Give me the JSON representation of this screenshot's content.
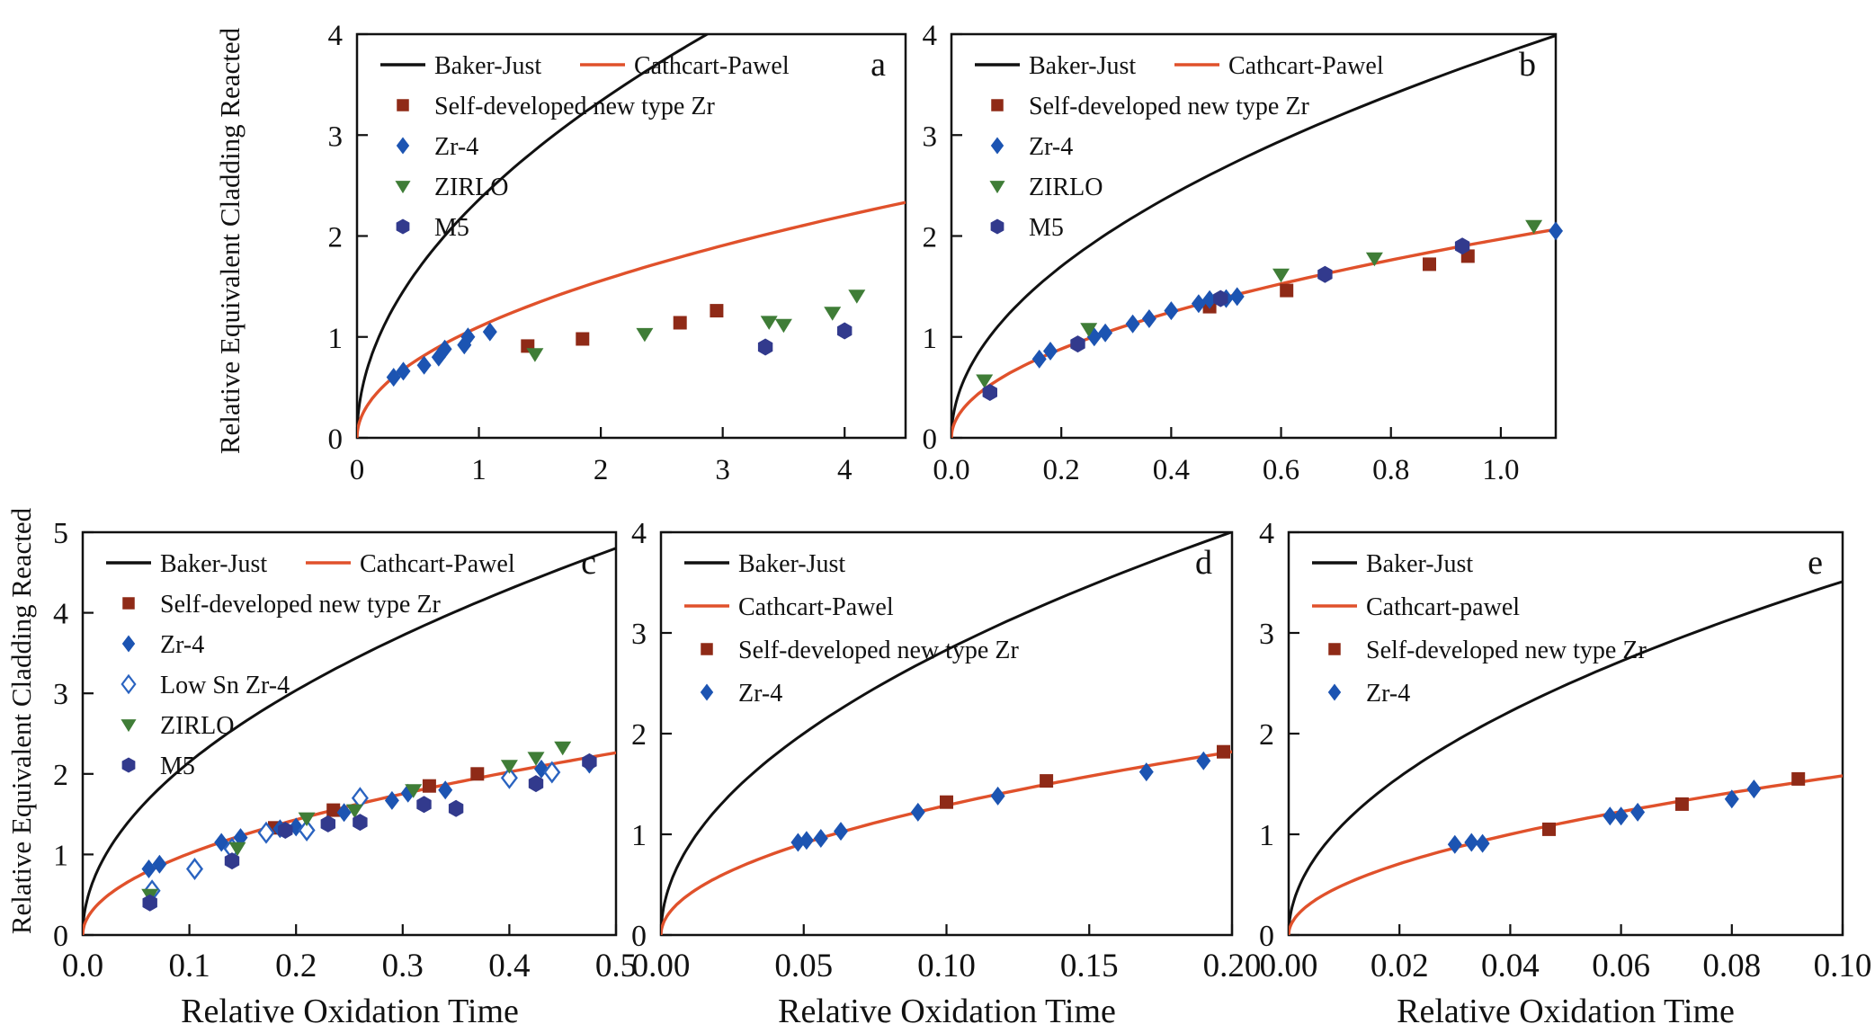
{
  "figure": {
    "y_axis_label_top": "Relative Equivalent Cladding Reacted",
    "y_axis_label_bottom": "Relative Equivalent Cladding Reacted",
    "background": "#ffffff"
  },
  "colors": {
    "baker_just": "#111111",
    "cathcart_pawel": "#e0512b",
    "self_developed_zr": "#8f2a17",
    "zr4": "#1c54b2",
    "low_sn_zr4": "#2a63c0",
    "zirlo": "#3f7d37",
    "m5": "#323a8d"
  },
  "chart_data": [
    {
      "id": "a",
      "panel_label": "a",
      "type": "scatter",
      "xlabel": "",
      "xlim": [
        0,
        4.5
      ],
      "ylim": [
        0,
        4
      ],
      "xtick_values": [
        0,
        1,
        2,
        3,
        4
      ],
      "xtick_labels": [
        "0",
        "1",
        "2",
        "3",
        "4"
      ],
      "ytick_values": [
        0,
        1,
        2,
        3,
        4
      ],
      "ytick_labels": [
        "0",
        "1",
        "2",
        "3",
        "4"
      ],
      "grid": false,
      "legend_layout": "paired",
      "legend_position": "top-left",
      "curves": [
        {
          "name": "Baker-Just",
          "model": "y=k*sqrt(x)",
          "k": 2.36,
          "color": "#111111"
        },
        {
          "name": "Cathcart-Pawel",
          "model": "y=k*sqrt(x)",
          "k": 1.1,
          "color": "#e0512b"
        }
      ],
      "series": [
        {
          "name": "Self-developed new type Zr",
          "marker": "square",
          "color": "#8f2a17",
          "points": [
            [
              1.4,
              0.91
            ],
            [
              1.85,
              0.98
            ],
            [
              2.65,
              1.14
            ],
            [
              2.95,
              1.26
            ]
          ]
        },
        {
          "name": "Zr-4",
          "marker": "diamond",
          "color": "#1c54b2",
          "points": [
            [
              0.3,
              0.6
            ],
            [
              0.38,
              0.66
            ],
            [
              0.55,
              0.72
            ],
            [
              0.67,
              0.8
            ],
            [
              0.72,
              0.88
            ],
            [
              0.88,
              0.92
            ],
            [
              0.91,
              1.0
            ],
            [
              1.09,
              1.05
            ]
          ]
        },
        {
          "name": "ZIRLO",
          "marker": "triangle-down",
          "color": "#3f7d37",
          "points": [
            [
              1.46,
              0.83
            ],
            [
              2.36,
              1.03
            ],
            [
              3.38,
              1.15
            ],
            [
              3.5,
              1.12
            ],
            [
              3.9,
              1.24
            ],
            [
              4.1,
              1.41
            ]
          ]
        },
        {
          "name": "M5",
          "marker": "hexagon",
          "color": "#323a8d",
          "points": [
            [
              3.35,
              0.9
            ],
            [
              4.0,
              1.06
            ]
          ]
        }
      ]
    },
    {
      "id": "b",
      "panel_label": "b",
      "type": "scatter",
      "xlabel": "",
      "xlim": [
        0,
        1.1
      ],
      "ylim": [
        0,
        4
      ],
      "xtick_values": [
        0,
        0.2,
        0.4,
        0.6,
        0.8,
        1.0
      ],
      "xtick_labels": [
        "0.0",
        "0.2",
        "0.4",
        "0.6",
        "0.8",
        "1.0"
      ],
      "ytick_values": [
        0,
        1,
        2,
        3,
        4
      ],
      "ytick_labels": [
        "0",
        "1",
        "2",
        "3",
        "4"
      ],
      "grid": false,
      "legend_layout": "paired",
      "legend_position": "top-left",
      "curves": [
        {
          "name": "Baker-Just",
          "model": "y=k*sqrt(x)",
          "k": 3.8,
          "color": "#111111"
        },
        {
          "name": "Cathcart-Pawel",
          "model": "y=k*sqrt(x)",
          "k": 1.97,
          "color": "#e0512b"
        }
      ],
      "series": [
        {
          "name": "Self-developed new type Zr",
          "marker": "square",
          "color": "#8f2a17",
          "points": [
            [
              0.47,
              1.3
            ],
            [
              0.61,
              1.46
            ],
            [
              0.87,
              1.72
            ],
            [
              0.94,
              1.8
            ]
          ]
        },
        {
          "name": "Zr-4",
          "marker": "diamond",
          "color": "#1c54b2",
          "points": [
            [
              0.16,
              0.78
            ],
            [
              0.18,
              0.86
            ],
            [
              0.26,
              1.0
            ],
            [
              0.28,
              1.04
            ],
            [
              0.33,
              1.13
            ],
            [
              0.36,
              1.18
            ],
            [
              0.4,
              1.26
            ],
            [
              0.45,
              1.33
            ],
            [
              0.47,
              1.37
            ],
            [
              0.5,
              1.38
            ],
            [
              0.52,
              1.4
            ],
            [
              1.1,
              2.05
            ]
          ]
        },
        {
          "name": "ZIRLO",
          "marker": "triangle-down",
          "color": "#3f7d37",
          "points": [
            [
              0.06,
              0.57
            ],
            [
              0.25,
              1.08
            ],
            [
              0.6,
              1.62
            ],
            [
              0.77,
              1.78
            ],
            [
              1.06,
              2.1
            ]
          ]
        },
        {
          "name": "M5",
          "marker": "hexagon",
          "color": "#323a8d",
          "points": [
            [
              0.07,
              0.45
            ],
            [
              0.23,
              0.93
            ],
            [
              0.49,
              1.38
            ],
            [
              0.68,
              1.62
            ],
            [
              0.93,
              1.9
            ]
          ]
        }
      ]
    },
    {
      "id": "c",
      "panel_label": "c",
      "type": "scatter",
      "xlabel": "Relative Oxidation Time",
      "xlim": [
        0,
        0.5
      ],
      "ylim": [
        0,
        5
      ],
      "xtick_values": [
        0,
        0.1,
        0.2,
        0.3,
        0.4,
        0.5
      ],
      "xtick_labels": [
        "0.0",
        "0.1",
        "0.2",
        "0.3",
        "0.4",
        "0.5"
      ],
      "ytick_values": [
        0,
        1,
        2,
        3,
        4,
        5
      ],
      "ytick_labels": [
        "0",
        "1",
        "2",
        "3",
        "4",
        "5"
      ],
      "grid": false,
      "legend_layout": "paired",
      "legend_position": "top-left",
      "curves": [
        {
          "name": "Baker-Just",
          "model": "y=k*sqrt(x)",
          "k": 6.79,
          "color": "#111111"
        },
        {
          "name": "Cathcart-Pawel",
          "model": "y=k*sqrt(x)",
          "k": 3.2,
          "color": "#e0512b"
        }
      ],
      "series": [
        {
          "name": "Self-developed new type Zr",
          "marker": "square",
          "color": "#8f2a17",
          "points": [
            [
              0.18,
              1.33
            ],
            [
              0.235,
              1.55
            ],
            [
              0.325,
              1.85
            ],
            [
              0.37,
              2.0
            ]
          ]
        },
        {
          "name": "Zr-4",
          "marker": "diamond",
          "color": "#1c54b2",
          "points": [
            [
              0.062,
              0.82
            ],
            [
              0.072,
              0.88
            ],
            [
              0.13,
              1.15
            ],
            [
              0.148,
              1.21
            ],
            [
              0.185,
              1.32
            ],
            [
              0.2,
              1.34
            ],
            [
              0.245,
              1.52
            ],
            [
              0.29,
              1.67
            ],
            [
              0.305,
              1.76
            ],
            [
              0.34,
              1.8
            ],
            [
              0.43,
              2.06
            ],
            [
              0.475,
              2.12
            ]
          ]
        },
        {
          "name": "Low Sn Zr-4",
          "marker": "diamond-open",
          "color": "#2a63c0",
          "points": [
            [
              0.065,
              0.55
            ],
            [
              0.105,
              0.82
            ],
            [
              0.14,
              1.07
            ],
            [
              0.172,
              1.27
            ],
            [
              0.21,
              1.3
            ],
            [
              0.26,
              1.7
            ],
            [
              0.4,
              1.95
            ],
            [
              0.44,
              2.02
            ]
          ]
        },
        {
          "name": "ZIRLO",
          "marker": "triangle-down",
          "color": "#3f7d37",
          "points": [
            [
              0.063,
              0.5
            ],
            [
              0.145,
              1.08
            ],
            [
              0.21,
              1.45
            ],
            [
              0.255,
              1.55
            ],
            [
              0.31,
              1.8
            ],
            [
              0.4,
              2.1
            ],
            [
              0.425,
              2.2
            ],
            [
              0.45,
              2.33
            ]
          ]
        },
        {
          "name": "M5",
          "marker": "hexagon",
          "color": "#323a8d",
          "points": [
            [
              0.063,
              0.4
            ],
            [
              0.14,
              0.92
            ],
            [
              0.19,
              1.3
            ],
            [
              0.23,
              1.38
            ],
            [
              0.26,
              1.4
            ],
            [
              0.32,
              1.62
            ],
            [
              0.35,
              1.57
            ],
            [
              0.425,
              1.88
            ],
            [
              0.475,
              2.15
            ]
          ]
        }
      ]
    },
    {
      "id": "d",
      "panel_label": "d",
      "type": "scatter",
      "xlabel": "Relative Oxidation Time",
      "xlim": [
        0,
        0.2
      ],
      "ylim": [
        0,
        4
      ],
      "xtick_values": [
        0,
        0.05,
        0.1,
        0.15,
        0.2
      ],
      "xtick_labels": [
        "0.00",
        "0.05",
        "0.10",
        "0.15",
        "0.20"
      ],
      "ytick_values": [
        0,
        1,
        2,
        3,
        4
      ],
      "ytick_labels": [
        "0",
        "1",
        "2",
        "3",
        "4"
      ],
      "grid": false,
      "legend_layout": "stacked",
      "legend_position": "top-left",
      "curves": [
        {
          "name": "Baker-Just",
          "model": "y=k*sqrt(x)",
          "k": 8.95,
          "color": "#111111"
        },
        {
          "name": "Cathcart-Pawel",
          "model": "y=k*sqrt(x)",
          "k": 4.07,
          "color": "#e0512b"
        }
      ],
      "series": [
        {
          "name": "Self-developed new type Zr",
          "marker": "square",
          "color": "#8f2a17",
          "points": [
            [
              0.1,
              1.32
            ],
            [
              0.135,
              1.53
            ],
            [
              0.197,
              1.82
            ]
          ]
        },
        {
          "name": "Zr-4",
          "marker": "diamond",
          "color": "#1c54b2",
          "points": [
            [
              0.048,
              0.92
            ],
            [
              0.051,
              0.94
            ],
            [
              0.056,
              0.96
            ],
            [
              0.063,
              1.03
            ],
            [
              0.09,
              1.22
            ],
            [
              0.118,
              1.38
            ],
            [
              0.17,
              1.62
            ],
            [
              0.19,
              1.73
            ]
          ]
        }
      ]
    },
    {
      "id": "e",
      "panel_label": "e",
      "type": "scatter",
      "xlabel": "Relative Oxidation Time",
      "xlim": [
        0,
        0.1
      ],
      "ylim": [
        0,
        4
      ],
      "xtick_values": [
        0,
        0.02,
        0.04,
        0.06,
        0.08,
        0.1
      ],
      "xtick_labels": [
        "0.00",
        "0.02",
        "0.04",
        "0.06",
        "0.08",
        "0.10"
      ],
      "ytick_values": [
        0,
        1,
        2,
        3,
        4
      ],
      "ytick_labels": [
        "0",
        "1",
        "2",
        "3",
        "4"
      ],
      "grid": false,
      "legend_layout": "stacked",
      "legend_position": "top-left",
      "curves": [
        {
          "name": "Baker-Just",
          "model": "y=k*sqrt(x)",
          "k": 11.1,
          "color": "#111111"
        },
        {
          "name": "Cathcart-pawel",
          "model": "y=k*sqrt(x)",
          "k": 5.0,
          "color": "#e0512b"
        }
      ],
      "series": [
        {
          "name": "Self-developed new type Zr",
          "marker": "square",
          "color": "#8f2a17",
          "points": [
            [
              0.047,
              1.05
            ],
            [
              0.071,
              1.3
            ],
            [
              0.092,
              1.55
            ]
          ]
        },
        {
          "name": "Zr-4",
          "marker": "diamond",
          "color": "#1c54b2",
          "points": [
            [
              0.03,
              0.9
            ],
            [
              0.033,
              0.92
            ],
            [
              0.035,
              0.91
            ],
            [
              0.058,
              1.18
            ],
            [
              0.06,
              1.18
            ],
            [
              0.063,
              1.22
            ],
            [
              0.08,
              1.35
            ],
            [
              0.084,
              1.45
            ]
          ]
        }
      ]
    }
  ]
}
